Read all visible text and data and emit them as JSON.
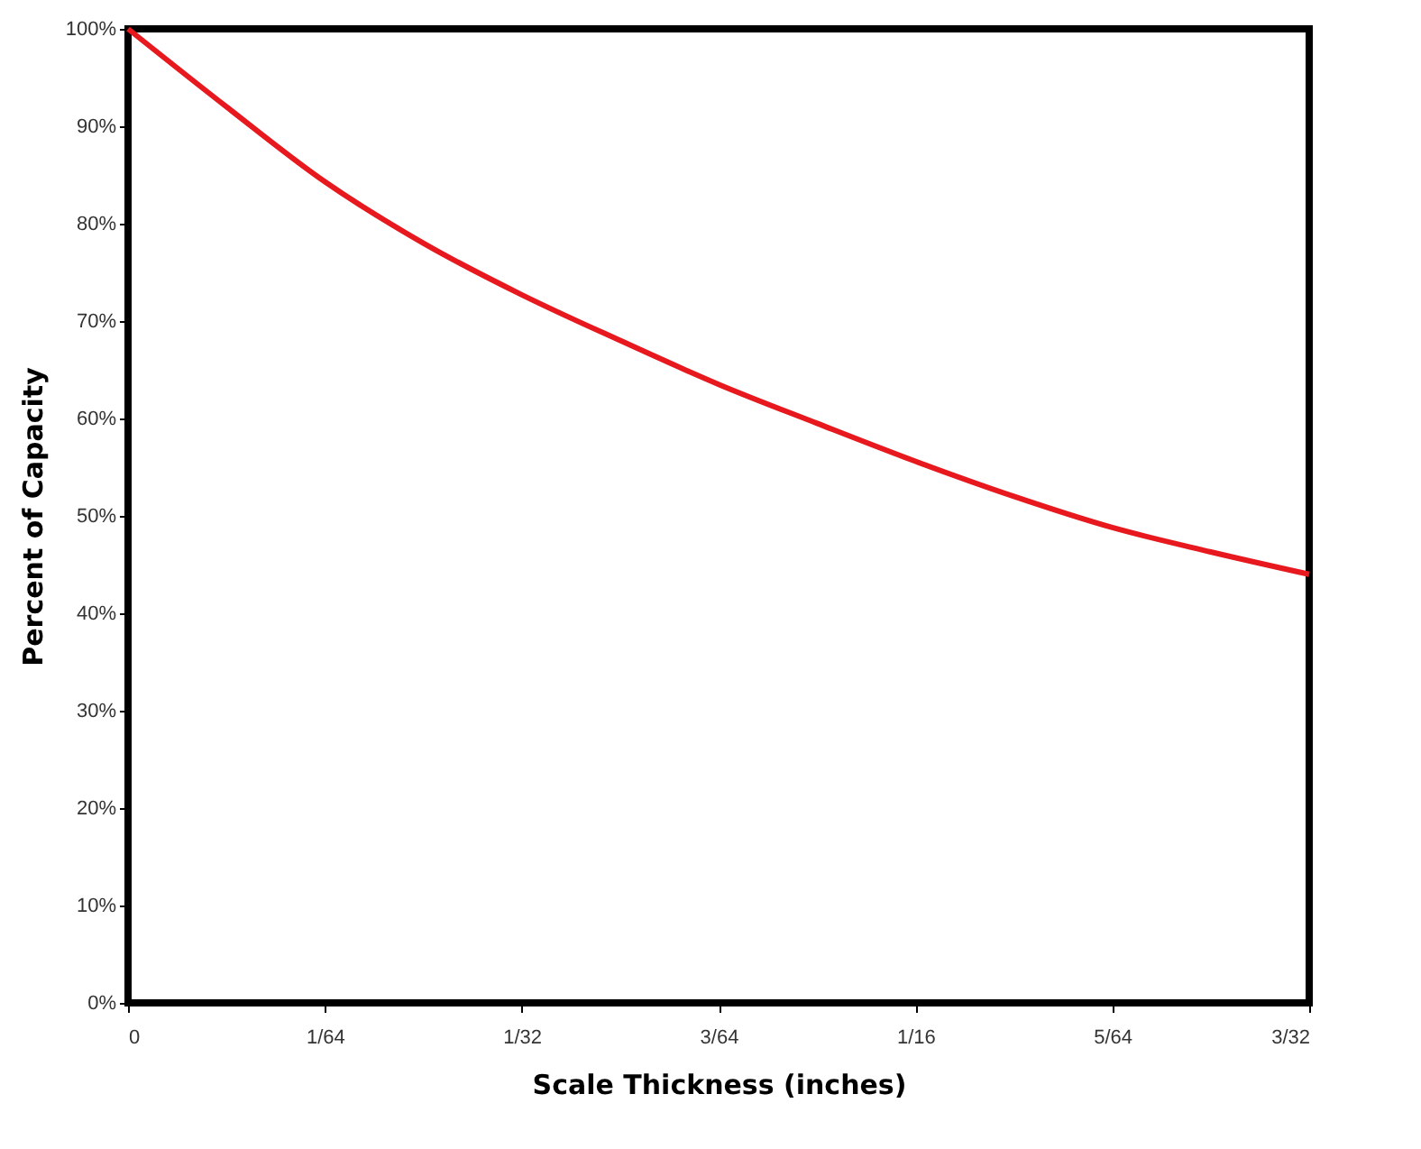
{
  "chart_data": {
    "type": "line",
    "xlabel": "Scale Thickness (inches)",
    "ylabel": "Percent of Capacity",
    "x": [
      0,
      0.0078125,
      0.015625,
      0.0234375,
      0.03125,
      0.0390625,
      0.046875,
      0.0546875,
      0.0625,
      0.0703125,
      0.078125,
      0.0859375,
      0.09375
    ],
    "series": [
      {
        "color": "#e8191e",
        "values": [
          100,
          92,
          84.3,
          78,
          72.7,
          68,
          63.5,
          59.5,
          55.6,
          52,
          48.8,
          46.3,
          44
        ]
      }
    ],
    "xlim": [
      0,
      0.09375
    ],
    "ylim": [
      0,
      100
    ],
    "xticks": [
      {
        "value": 0,
        "label": "0"
      },
      {
        "value": 0.015625,
        "label": "1/64"
      },
      {
        "value": 0.03125,
        "label": "1/32"
      },
      {
        "value": 0.046875,
        "label": "3/64"
      },
      {
        "value": 0.0625,
        "label": "1/16"
      },
      {
        "value": 0.078125,
        "label": "5/64"
      },
      {
        "value": 0.09375,
        "label": "3/32"
      }
    ],
    "yticks": [
      {
        "value": 0,
        "label": "0%"
      },
      {
        "value": 10,
        "label": "10%"
      },
      {
        "value": 20,
        "label": "20%"
      },
      {
        "value": 30,
        "label": "30%"
      },
      {
        "value": 40,
        "label": "40%"
      },
      {
        "value": 50,
        "label": "50%"
      },
      {
        "value": 60,
        "label": "60%"
      },
      {
        "value": 70,
        "label": "70%"
      },
      {
        "value": 80,
        "label": "80%"
      },
      {
        "value": 90,
        "label": "90%"
      },
      {
        "value": 100,
        "label": "100%"
      }
    ],
    "grid": false,
    "marker": "none",
    "line_style": "solid"
  }
}
